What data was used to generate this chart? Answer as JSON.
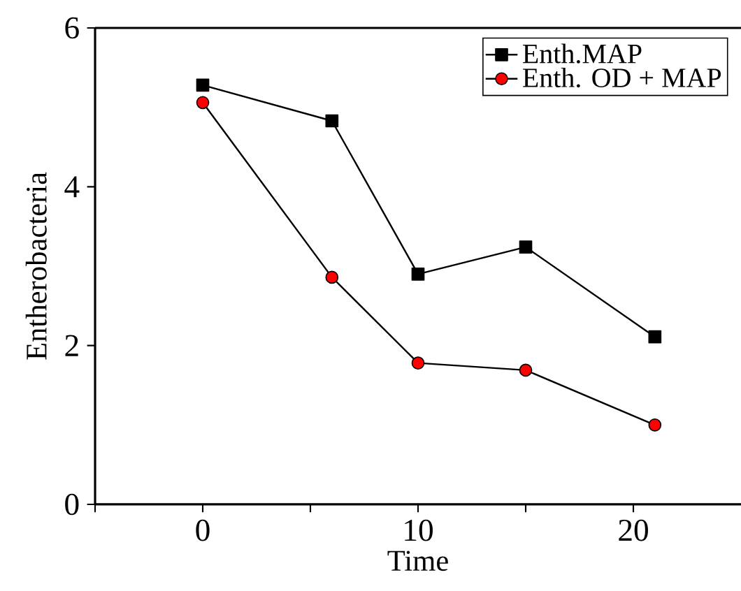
{
  "chart_data": {
    "type": "line",
    "xlabel": "Time",
    "ylabel": "Entherobacteria",
    "x": [
      0,
      6,
      10,
      15,
      21
    ],
    "xlim": [
      -5,
      25
    ],
    "ylim": [
      0,
      6
    ],
    "xticks": [
      {
        "value": -5,
        "label": null
      },
      0,
      {
        "value": 5,
        "label": null
      },
      10,
      {
        "value": 15,
        "label": null
      },
      20
    ],
    "yticks": [
      0,
      2,
      4,
      6
    ],
    "legend": "top right",
    "grid": false,
    "series": [
      {
        "name": "Enth.MAP",
        "color": "#000000",
        "marker": "square",
        "values": [
          5.28,
          4.83,
          2.9,
          3.24,
          2.11
        ]
      },
      {
        "name": "Enth. OD + MAP",
        "color": "#ff0000",
        "marker": "circle",
        "values": [
          5.06,
          2.86,
          1.78,
          1.69,
          1.0
        ]
      }
    ]
  }
}
